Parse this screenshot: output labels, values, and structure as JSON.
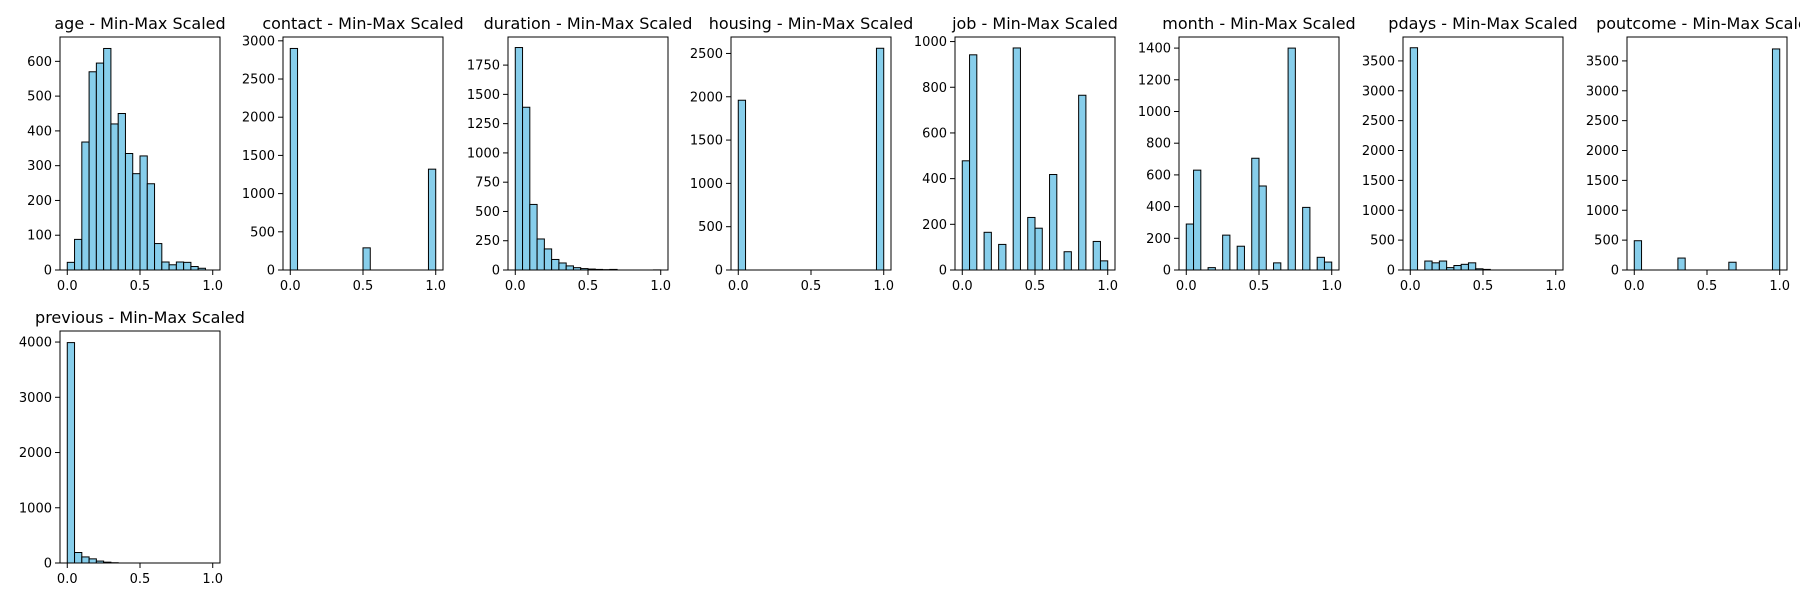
{
  "style": {
    "bar_fill": "#87ceeb",
    "bar_edge": "#000000",
    "axes_color": "#000000"
  },
  "chart_data": [
    {
      "type": "bar",
      "title": "age - Min-Max Scaled",
      "xlim": [
        -0.05,
        1.05
      ],
      "ylim": [
        0,
        670
      ],
      "xticks": [
        0.0,
        0.5,
        1.0
      ],
      "xtick_labels": [
        "0.0",
        "0.5",
        "1.0"
      ],
      "yticks": [
        0,
        100,
        200,
        300,
        400,
        500,
        600
      ],
      "ytick_labels": [
        "0",
        "100",
        "200",
        "300",
        "400",
        "500",
        "600"
      ],
      "bin_edges": [
        0.0,
        0.05,
        0.1,
        0.15,
        0.2,
        0.25,
        0.3,
        0.35,
        0.4,
        0.45,
        0.5,
        0.55,
        0.6,
        0.65,
        0.7,
        0.75,
        0.8,
        0.85,
        0.9,
        0.95,
        1.0
      ],
      "values": [
        22,
        88,
        368,
        570,
        595,
        637,
        420,
        450,
        335,
        277,
        328,
        248,
        76,
        23,
        15,
        23,
        22,
        10,
        5,
        0
      ]
    },
    {
      "type": "bar",
      "title": "contact - Min-Max Scaled",
      "xlim": [
        -0.05,
        1.05
      ],
      "ylim": [
        0,
        3050
      ],
      "xticks": [
        0.0,
        0.5,
        1.0
      ],
      "xtick_labels": [
        "0.0",
        "0.5",
        "1.0"
      ],
      "yticks": [
        0,
        500,
        1000,
        1500,
        2000,
        2500,
        3000
      ],
      "ytick_labels": [
        "0",
        "500",
        "1000",
        "1500",
        "2000",
        "2500",
        "3000"
      ],
      "bin_edges": [
        0.0,
        0.05,
        0.1,
        0.15,
        0.2,
        0.25,
        0.3,
        0.35,
        0.4,
        0.45,
        0.5,
        0.55,
        0.6,
        0.65,
        0.7,
        0.75,
        0.8,
        0.85,
        0.9,
        0.95,
        1.0
      ],
      "values": [
        2900,
        0,
        0,
        0,
        0,
        0,
        0,
        0,
        0,
        0,
        290,
        0,
        0,
        0,
        0,
        0,
        0,
        0,
        0,
        1320
      ]
    },
    {
      "type": "bar",
      "title": "duration - Min-Max Scaled",
      "xlim": [
        -0.05,
        1.05
      ],
      "ylim": [
        0,
        1990
      ],
      "xticks": [
        0.0,
        0.5,
        1.0
      ],
      "xtick_labels": [
        "0.0",
        "0.5",
        "1.0"
      ],
      "yticks": [
        0,
        250,
        500,
        750,
        1000,
        1250,
        1500,
        1750
      ],
      "ytick_labels": [
        "0",
        "250",
        "500",
        "750",
        "1000",
        "1250",
        "1500",
        "1750"
      ],
      "bin_edges": [
        0.0,
        0.05,
        0.1,
        0.15,
        0.2,
        0.25,
        0.3,
        0.35,
        0.4,
        0.45,
        0.5,
        0.55,
        0.6,
        0.65,
        0.7,
        0.75,
        0.8,
        0.85,
        0.9,
        0.95,
        1.0
      ],
      "values": [
        1900,
        1390,
        560,
        265,
        180,
        90,
        60,
        35,
        20,
        12,
        8,
        5,
        3,
        5,
        0,
        0,
        0,
        0,
        0,
        1
      ]
    },
    {
      "type": "bar",
      "title": "housing - Min-Max Scaled",
      "xlim": [
        -0.05,
        1.05
      ],
      "ylim": [
        0,
        2690
      ],
      "xticks": [
        0.0,
        0.5,
        1.0
      ],
      "xtick_labels": [
        "0.0",
        "0.5",
        "1.0"
      ],
      "yticks": [
        0,
        500,
        1000,
        1500,
        2000,
        2500
      ],
      "ytick_labels": [
        "0",
        "500",
        "1000",
        "1500",
        "2000",
        "2500"
      ],
      "bin_edges": [
        0.0,
        0.05,
        0.1,
        0.15,
        0.2,
        0.25,
        0.3,
        0.35,
        0.4,
        0.45,
        0.5,
        0.55,
        0.6,
        0.65,
        0.7,
        0.75,
        0.8,
        0.85,
        0.9,
        0.95,
        1.0
      ],
      "values": [
        1960,
        0,
        0,
        0,
        0,
        0,
        0,
        0,
        0,
        0,
        0,
        0,
        0,
        0,
        0,
        0,
        0,
        0,
        0,
        2560
      ]
    },
    {
      "type": "bar",
      "title": "job - Min-Max Scaled",
      "xlim": [
        -0.05,
        1.05
      ],
      "ylim": [
        0,
        1020
      ],
      "xticks": [
        0.0,
        0.5,
        1.0
      ],
      "xtick_labels": [
        "0.0",
        "0.5",
        "1.0"
      ],
      "yticks": [
        0,
        200,
        400,
        600,
        800,
        1000
      ],
      "ytick_labels": [
        "0",
        "200",
        "400",
        "600",
        "800",
        "1000"
      ],
      "bin_edges": [
        0.0,
        0.05,
        0.1,
        0.15,
        0.2,
        0.25,
        0.3,
        0.35,
        0.4,
        0.45,
        0.5,
        0.55,
        0.6,
        0.65,
        0.7,
        0.75,
        0.8,
        0.85,
        0.9,
        0.95,
        1.0
      ],
      "values": [
        478,
        942,
        0,
        165,
        0,
        112,
        0,
        972,
        0,
        230,
        183,
        0,
        418,
        0,
        80,
        0,
        765,
        0,
        125,
        40
      ]
    },
    {
      "type": "bar",
      "title": "month - Min-Max Scaled",
      "xlim": [
        -0.05,
        1.05
      ],
      "ylim": [
        0,
        1470
      ],
      "xticks": [
        0.0,
        0.5,
        1.0
      ],
      "xtick_labels": [
        "0.0",
        "0.5",
        "1.0"
      ],
      "yticks": [
        0,
        200,
        400,
        600,
        800,
        1000,
        1200,
        1400
      ],
      "ytick_labels": [
        "0",
        "200",
        "400",
        "600",
        "800",
        "1000",
        "1200",
        "1400"
      ],
      "bin_edges": [
        0.0,
        0.05,
        0.1,
        0.15,
        0.2,
        0.25,
        0.3,
        0.35,
        0.4,
        0.45,
        0.5,
        0.55,
        0.6,
        0.65,
        0.7,
        0.75,
        0.8,
        0.85,
        0.9,
        0.95,
        1.0
      ],
      "values": [
        290,
        630,
        0,
        15,
        0,
        220,
        0,
        150,
        0,
        705,
        530,
        0,
        45,
        0,
        1400,
        0,
        395,
        0,
        80,
        50
      ]
    },
    {
      "type": "bar",
      "title": "pdays - Min-Max Scaled",
      "xlim": [
        -0.05,
        1.05
      ],
      "ylim": [
        0,
        3900
      ],
      "xticks": [
        0.0,
        0.5,
        1.0
      ],
      "xtick_labels": [
        "0.0",
        "0.5",
        "1.0"
      ],
      "yticks": [
        0,
        500,
        1000,
        1500,
        2000,
        2500,
        3000,
        3500
      ],
      "ytick_labels": [
        "0",
        "500",
        "1000",
        "1500",
        "2000",
        "2500",
        "3000",
        "3500"
      ],
      "bin_edges": [
        0.0,
        0.05,
        0.1,
        0.15,
        0.2,
        0.25,
        0.3,
        0.35,
        0.4,
        0.45,
        0.5,
        0.55,
        0.6,
        0.65,
        0.7,
        0.75,
        0.8,
        0.85,
        0.9,
        0.95,
        1.0
      ],
      "values": [
        3720,
        0,
        150,
        120,
        150,
        40,
        75,
        95,
        120,
        20,
        10,
        0,
        0,
        0,
        0,
        0,
        0,
        0,
        0,
        0
      ]
    },
    {
      "type": "bar",
      "title": "poutcome - Min-Max Scaled",
      "xlim": [
        -0.05,
        1.05
      ],
      "ylim": [
        0,
        3900
      ],
      "xticks": [
        0.0,
        0.5,
        1.0
      ],
      "xtick_labels": [
        "0.0",
        "0.5",
        "1.0"
      ],
      "yticks": [
        0,
        500,
        1000,
        1500,
        2000,
        2500,
        3000,
        3500
      ],
      "ytick_labels": [
        "0",
        "500",
        "1000",
        "1500",
        "2000",
        "2500",
        "3000",
        "3500"
      ],
      "bin_edges": [
        0.0,
        0.05,
        0.1,
        0.15,
        0.2,
        0.25,
        0.3,
        0.35,
        0.4,
        0.45,
        0.5,
        0.55,
        0.6,
        0.65,
        0.7,
        0.75,
        0.8,
        0.85,
        0.9,
        0.95,
        1.0
      ],
      "values": [
        490,
        0,
        0,
        0,
        0,
        0,
        200,
        0,
        0,
        0,
        0,
        0,
        0,
        130,
        0,
        0,
        0,
        0,
        0,
        3700
      ]
    },
    {
      "type": "bar",
      "title": "previous - Min-Max Scaled",
      "xlim": [
        -0.05,
        1.05
      ],
      "ylim": [
        0,
        4200
      ],
      "xticks": [
        0.0,
        0.5,
        1.0
      ],
      "xtick_labels": [
        "0.0",
        "0.5",
        "1.0"
      ],
      "yticks": [
        0,
        1000,
        2000,
        3000,
        4000
      ],
      "ytick_labels": [
        "0",
        "1000",
        "2000",
        "3000",
        "4000"
      ],
      "bin_edges": [
        0.0,
        0.05,
        0.1,
        0.15,
        0.2,
        0.25,
        0.3,
        0.35,
        0.4,
        0.45,
        0.5,
        0.55,
        0.6,
        0.65,
        0.7,
        0.75,
        0.8,
        0.85,
        0.9,
        0.95,
        1.0
      ],
      "values": [
        3990,
        190,
        110,
        75,
        35,
        15,
        5,
        0,
        0,
        0,
        0,
        0,
        0,
        0,
        0,
        0,
        0,
        0,
        0,
        0
      ]
    }
  ]
}
